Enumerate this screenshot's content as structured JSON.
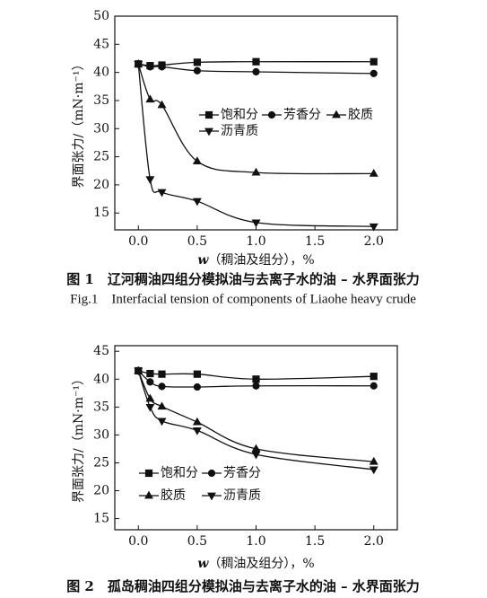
{
  "chart_data": [
    {
      "type": "line",
      "ylabel": "界面张力/（mN·m⁻¹）",
      "xlabel_var": "w",
      "xlabel": "（稠油及组分），%",
      "x": [
        0,
        0.1,
        0.2,
        0.5,
        1.0,
        2.0
      ],
      "xlim": [
        -0.2,
        2.2
      ],
      "xticks": [
        {
          "value": 0,
          "label": "0.0"
        },
        0.5,
        {
          "value": 1,
          "label": "1.0"
        },
        1.5,
        {
          "value": 2,
          "label": "2.0"
        }
      ],
      "ylim": [
        12,
        50
      ],
      "yticks": [
        15,
        20,
        25,
        30,
        35,
        40,
        45,
        50
      ],
      "series": [
        {
          "name": "饱和分",
          "color": "#111111",
          "marker": "square",
          "values": [
            41.5,
            41.2,
            41.3,
            41.8,
            41.9,
            41.9
          ]
        },
        {
          "name": "芳香分",
          "color": "#111111",
          "marker": "circle",
          "values": [
            41.5,
            41.0,
            41.0,
            40.3,
            40.1,
            39.8
          ]
        },
        {
          "name": "胶质",
          "color": "#111111",
          "marker": "triangle-up",
          "values": [
            41.5,
            35.2,
            34.2,
            24.2,
            22.2,
            22.0
          ]
        },
        {
          "name": "沥青质",
          "color": "#111111",
          "marker": "triangle-down",
          "values": [
            41.5,
            21.0,
            18.7,
            17.1,
            13.3,
            12.6
          ]
        }
      ]
    },
    {
      "type": "line",
      "ylabel": "界面张力/（mN·m⁻¹）",
      "xlabel_var": "w",
      "xlabel": "（稠油及组分），%",
      "x": [
        0,
        0.1,
        0.2,
        0.5,
        1.0,
        2.0
      ],
      "xlim": [
        -0.2,
        2.2
      ],
      "xticks": [
        {
          "value": 0,
          "label": "0.0"
        },
        0.5,
        {
          "value": 1,
          "label": "1.0"
        },
        1.5,
        {
          "value": 2,
          "label": "2.0"
        }
      ],
      "ylim": [
        13,
        46
      ],
      "yticks": [
        15,
        20,
        25,
        30,
        35,
        40,
        45
      ],
      "series": [
        {
          "name": "饱和分",
          "color": "#111111",
          "marker": "square",
          "values": [
            41.5,
            41.0,
            40.9,
            40.9,
            40.0,
            40.5
          ]
        },
        {
          "name": "芳香分",
          "color": "#111111",
          "marker": "circle",
          "values": [
            41.5,
            39.5,
            38.7,
            38.6,
            38.8,
            38.8
          ]
        },
        {
          "name": "胶质",
          "color": "#111111",
          "marker": "triangle-up",
          "values": [
            41.5,
            36.5,
            35.1,
            32.3,
            27.5,
            25.2
          ]
        },
        {
          "name": "沥青质",
          "color": "#111111",
          "marker": "triangle-down",
          "values": [
            41.5,
            35.0,
            32.5,
            30.8,
            26.5,
            23.8
          ]
        }
      ]
    }
  ],
  "captions": {
    "fig1_cn": "图 1　辽河稠油四组分模拟油与去离子水的油 – 水界面张力",
    "fig1_en": "Fig.1　Interfacial tension of components of Liaohe heavy crude",
    "fig2_cn": "图 2　孤岛稠油四组分模拟油与去离子水的油 – 水界面张力"
  }
}
